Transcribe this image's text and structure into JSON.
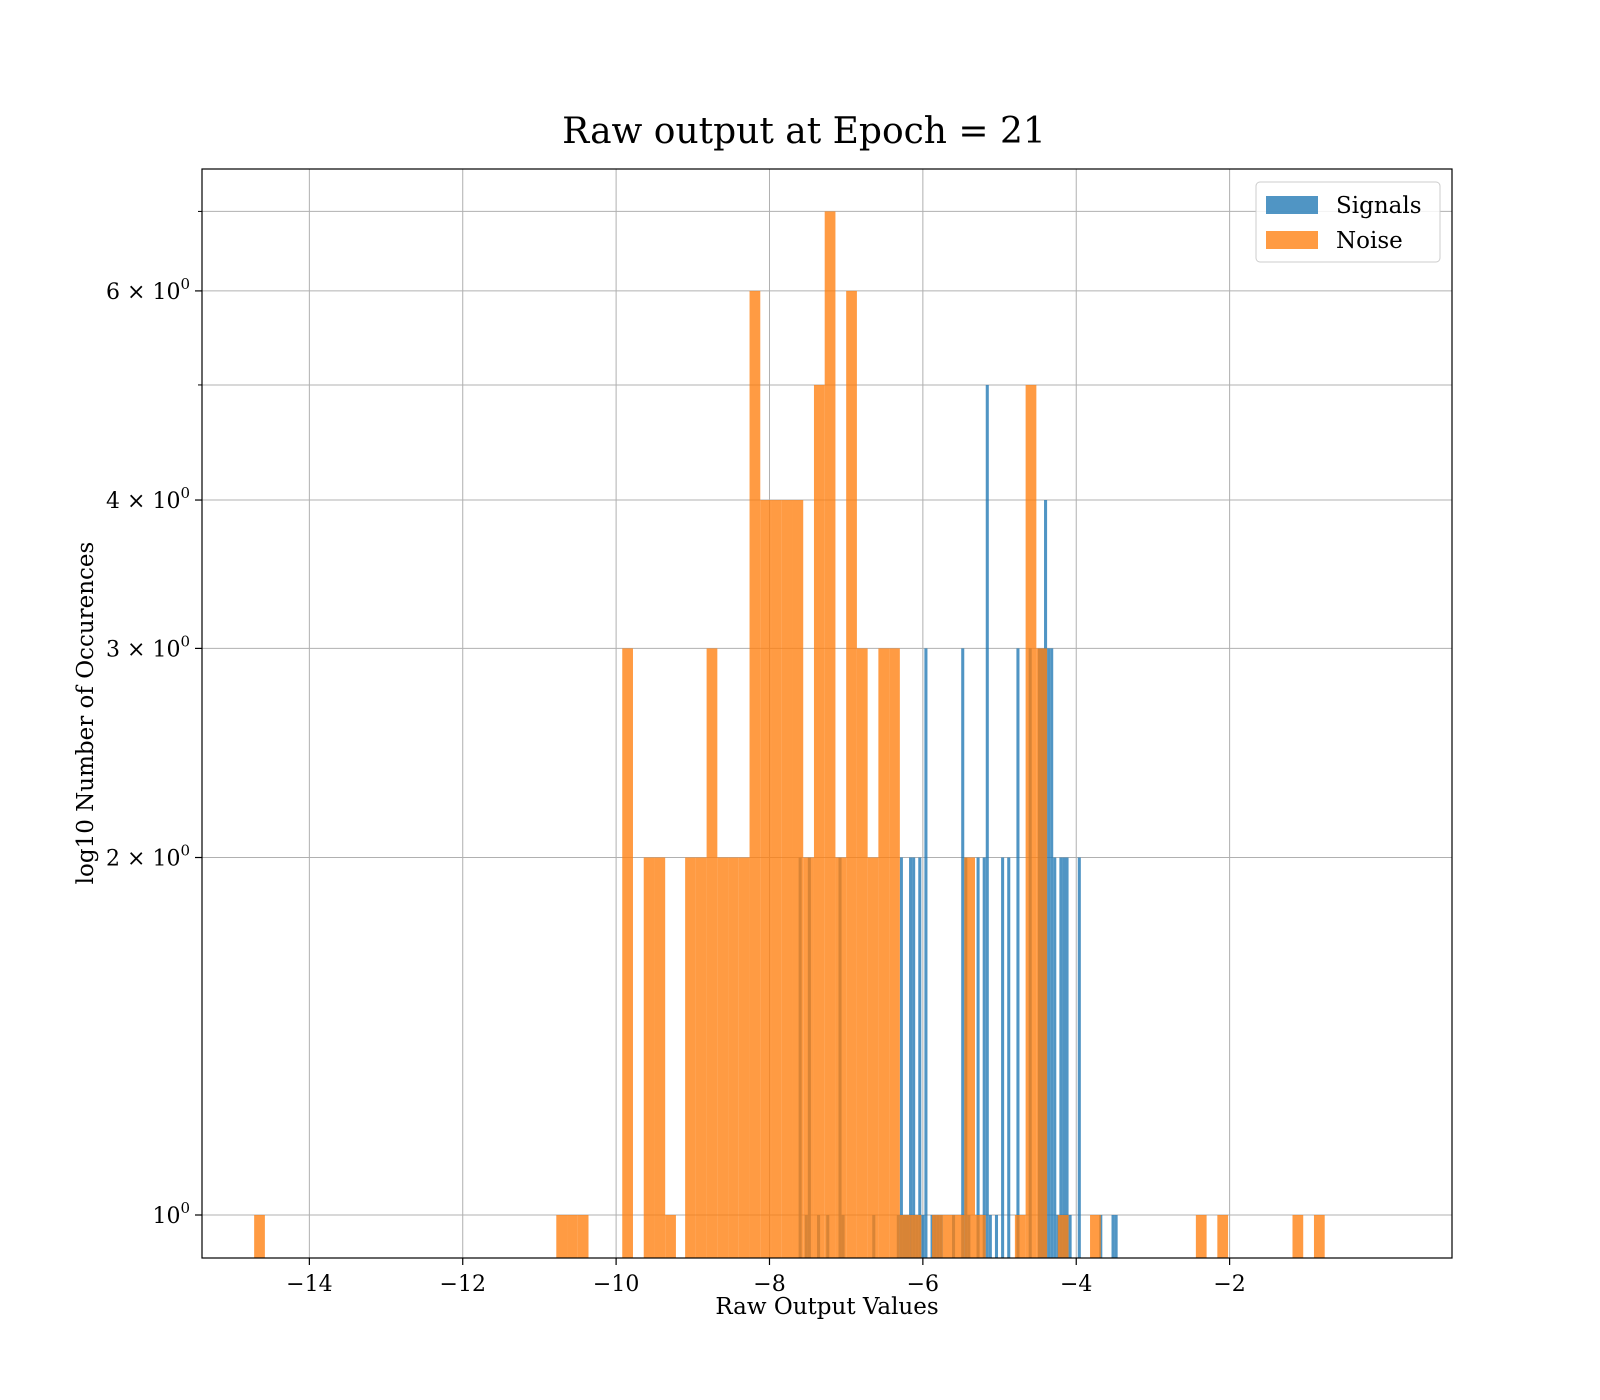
{
  "chart_data": {
    "type": "bar",
    "title": "Raw output at Epoch = 21",
    "xlabel": "Raw Output Values",
    "ylabel": "log10 Number of Occurences",
    "xlim": [
      -15.4,
      0.9
    ],
    "ylim": [
      0.92,
      7.6
    ],
    "yscale": "log",
    "grid": true,
    "legend_position": "top-right",
    "x_ticks": [
      {
        "value": -14,
        "label": "−14"
      },
      {
        "value": -12,
        "label": "−12"
      },
      {
        "value": -10,
        "label": "−10"
      },
      {
        "value": -8,
        "label": "−8"
      },
      {
        "value": -6,
        "label": "−6"
      },
      {
        "value": -4,
        "label": "−4"
      },
      {
        "value": -2,
        "label": "−2"
      }
    ],
    "y_ticks": [
      {
        "value": 1,
        "base": "10",
        "exp": "0"
      },
      {
        "value": 2,
        "base": "2 × 10",
        "exp": "0"
      },
      {
        "value": 3,
        "base": "3 × 10",
        "exp": "0"
      },
      {
        "value": 4,
        "base": "4 × 10",
        "exp": "0"
      },
      {
        "value": 6,
        "base": "6 × 10",
        "exp": "0"
      }
    ],
    "y_minor_ticks": [
      5,
      7
    ],
    "bin_width_note": "",
    "series": [
      {
        "name": "Signals",
        "color": "#1f77b4",
        "opacity": 0.78,
        "bins": [
          [
            -7.62,
            -7.58,
            2
          ],
          [
            -7.54,
            -7.5,
            1
          ],
          [
            -7.5,
            -7.46,
            2
          ],
          [
            -7.38,
            -7.34,
            1
          ],
          [
            -7.26,
            -7.22,
            1
          ],
          [
            -7.1,
            -7.06,
            2
          ],
          [
            -7.06,
            -7.02,
            1
          ],
          [
            -6.66,
            -6.62,
            1
          ],
          [
            -6.34,
            -6.3,
            1
          ],
          [
            -6.3,
            -6.26,
            2
          ],
          [
            -6.26,
            -6.22,
            1
          ],
          [
            -6.22,
            -6.18,
            1
          ],
          [
            -6.18,
            -6.14,
            2
          ],
          [
            -6.14,
            -6.1,
            2
          ],
          [
            -6.1,
            -6.06,
            1
          ],
          [
            -6.06,
            -6.02,
            2
          ],
          [
            -6.02,
            -5.98,
            1
          ],
          [
            -5.98,
            -5.94,
            3
          ],
          [
            -5.9,
            -5.86,
            1
          ],
          [
            -5.86,
            -5.82,
            1
          ],
          [
            -5.82,
            -5.78,
            1
          ],
          [
            -5.78,
            -5.74,
            1
          ],
          [
            -5.62,
            -5.58,
            1
          ],
          [
            -5.5,
            -5.46,
            3
          ],
          [
            -5.46,
            -5.42,
            2
          ],
          [
            -5.42,
            -5.38,
            1
          ],
          [
            -5.3,
            -5.26,
            2
          ],
          [
            -5.22,
            -5.18,
            2
          ],
          [
            -5.18,
            -5.14,
            5
          ],
          [
            -5.14,
            -5.1,
            1
          ],
          [
            -5.06,
            -5.02,
            1
          ],
          [
            -4.98,
            -4.94,
            2
          ],
          [
            -4.9,
            -4.86,
            2
          ],
          [
            -4.78,
            -4.74,
            3
          ],
          [
            -4.62,
            -4.58,
            3
          ],
          [
            -4.5,
            -4.46,
            3
          ],
          [
            -4.46,
            -4.42,
            3
          ],
          [
            -4.42,
            -4.38,
            4
          ],
          [
            -4.38,
            -4.34,
            3
          ],
          [
            -4.34,
            -4.3,
            3
          ],
          [
            -4.3,
            -4.26,
            2
          ],
          [
            -4.26,
            -4.22,
            1
          ],
          [
            -4.22,
            -4.18,
            2
          ],
          [
            -4.18,
            -4.14,
            2
          ],
          [
            -4.14,
            -4.1,
            2
          ],
          [
            -4.1,
            -4.06,
            1
          ],
          [
            -3.98,
            -3.94,
            2
          ],
          [
            -3.7,
            -3.66,
            1
          ],
          [
            -3.54,
            -3.5,
            1
          ],
          [
            -3.5,
            -3.46,
            1
          ]
        ]
      },
      {
        "name": "Noise",
        "color": "#ff7f0e",
        "opacity": 0.78,
        "bins": [
          [
            -14.72,
            -14.58,
            1
          ],
          [
            -10.78,
            -10.64,
            1
          ],
          [
            -10.64,
            -10.5,
            1
          ],
          [
            -10.5,
            -10.36,
            1
          ],
          [
            -9.92,
            -9.78,
            3
          ],
          [
            -9.64,
            -9.5,
            2
          ],
          [
            -9.5,
            -9.36,
            2
          ],
          [
            -9.36,
            -9.22,
            1
          ],
          [
            -9.1,
            -8.96,
            2
          ],
          [
            -8.96,
            -8.82,
            2
          ],
          [
            -8.82,
            -8.68,
            3
          ],
          [
            -8.68,
            -8.54,
            2
          ],
          [
            -8.54,
            -8.4,
            2
          ],
          [
            -8.4,
            -8.26,
            2
          ],
          [
            -8.26,
            -8.12,
            6
          ],
          [
            -8.12,
            -7.98,
            4
          ],
          [
            -7.98,
            -7.84,
            4
          ],
          [
            -7.84,
            -7.7,
            4
          ],
          [
            -7.7,
            -7.56,
            4
          ],
          [
            -7.56,
            -7.42,
            2
          ],
          [
            -7.42,
            -7.28,
            5
          ],
          [
            -7.28,
            -7.14,
            7
          ],
          [
            -7.14,
            -7.0,
            2
          ],
          [
            -7.0,
            -6.86,
            6
          ],
          [
            -6.86,
            -6.72,
            3
          ],
          [
            -6.72,
            -6.58,
            2
          ],
          [
            -6.58,
            -6.44,
            3
          ],
          [
            -6.44,
            -6.3,
            3
          ],
          [
            -6.3,
            -6.16,
            1
          ],
          [
            -6.16,
            -6.02,
            1
          ],
          [
            -5.88,
            -5.74,
            1
          ],
          [
            -5.74,
            -5.6,
            1
          ],
          [
            -5.6,
            -5.46,
            1
          ],
          [
            -5.46,
            -5.32,
            2
          ],
          [
            -5.32,
            -5.18,
            1
          ],
          [
            -4.8,
            -4.66,
            1
          ],
          [
            -4.66,
            -4.52,
            5
          ],
          [
            -4.52,
            -4.38,
            3
          ],
          [
            -4.24,
            -4.1,
            1
          ],
          [
            -3.82,
            -3.68,
            1
          ],
          [
            -2.44,
            -2.3,
            1
          ],
          [
            -2.16,
            -2.02,
            1
          ],
          [
            -1.18,
            -1.04,
            1
          ],
          [
            -0.9,
            -0.76,
            1
          ]
        ]
      }
    ]
  }
}
